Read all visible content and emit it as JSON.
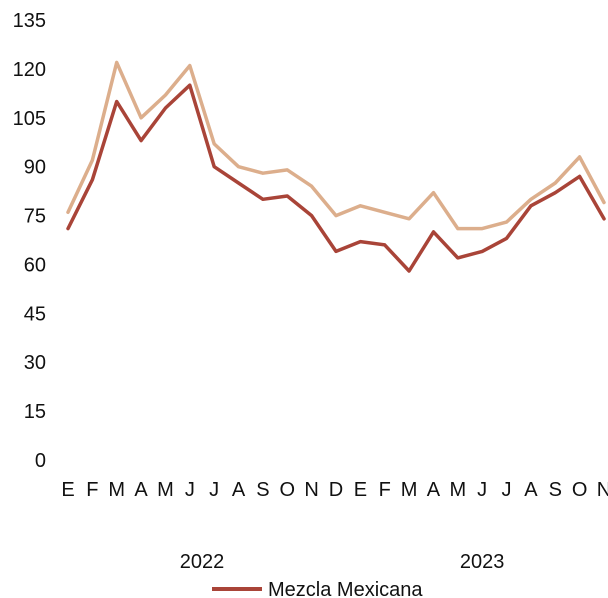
{
  "chart_data": {
    "type": "line",
    "title": "",
    "xlabel": "",
    "ylabel": "",
    "ylim": [
      0,
      135
    ],
    "y_ticks": [
      "0",
      "15",
      "30",
      "45",
      "60",
      "75",
      "90",
      "105",
      "120",
      "135"
    ],
    "x_month_labels": [
      "E",
      "F",
      "M",
      "A",
      "M",
      "J",
      "J",
      "A",
      "S",
      "O",
      "N",
      "D",
      "E",
      "F",
      "M",
      "A",
      "M",
      "J",
      "J",
      "A",
      "S",
      "O",
      "N"
    ],
    "x_year_labels": [
      "2022",
      "2023"
    ],
    "grid": false,
    "legend_position": "bottom",
    "x": [
      "2022-01",
      "2022-02",
      "2022-03",
      "2022-04",
      "2022-05",
      "2022-06",
      "2022-07",
      "2022-08",
      "2022-09",
      "2022-10",
      "2022-11",
      "2022-12",
      "2023-01",
      "2023-02",
      "2023-03",
      "2023-04",
      "2023-05",
      "2023-06",
      "2023-07",
      "2023-08",
      "2023-09",
      "2023-10",
      "2023-11"
    ],
    "series": [
      {
        "name": "Mezcla Mexicana",
        "color": "#a94438",
        "values": [
          71,
          86,
          110,
          98,
          108,
          115,
          90,
          85,
          80,
          81,
          75,
          64,
          67,
          66,
          58,
          70,
          62,
          64,
          68,
          78,
          82,
          87,
          74
        ]
      },
      {
        "name": "",
        "color": "#dcae8c",
        "values": [
          76,
          92,
          122,
          105,
          112,
          121,
          97,
          90,
          88,
          89,
          84,
          75,
          78,
          76,
          74,
          82,
          71,
          71,
          73,
          80,
          85,
          93,
          79
        ]
      }
    ]
  },
  "legend": {
    "label": "Mezcla Mexicana",
    "color": "#a94438"
  }
}
